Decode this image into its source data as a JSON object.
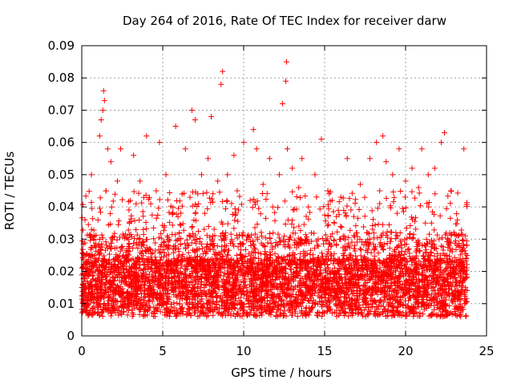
{
  "chart_data": {
    "type": "scatter",
    "title": "Day 264 of 2016, Rate Of TEC Index for receiver darw",
    "xlabel": "GPS time / hours",
    "ylabel": "ROTI / TECUs",
    "xlim": [
      0,
      25
    ],
    "ylim": [
      0,
      0.09
    ],
    "xticks": [
      0,
      5,
      10,
      15,
      20,
      25
    ],
    "xtick_labels": [
      "0",
      "5",
      "10",
      "15",
      "20",
      "25"
    ],
    "yticks": [
      0,
      0.01,
      0.02,
      0.03,
      0.04,
      0.05,
      0.06,
      0.07,
      0.08,
      0.09
    ],
    "ytick_labels": [
      "0",
      "0.01",
      "0.02",
      "0.03",
      "0.04",
      "0.05",
      "0.06",
      "0.07",
      "0.08",
      "0.09"
    ],
    "grid": true,
    "marker": "+",
    "marker_color": "#ff0000",
    "grid_color": "#a0a0a0",
    "series": [
      {
        "name": "ROTI",
        "x": [
          0.0,
          0.2,
          0.4,
          0.6,
          0.8,
          1.0,
          1.1,
          1.2,
          1.3,
          1.35,
          1.4,
          1.5,
          1.6,
          1.8,
          2.0,
          2.2,
          2.4,
          2.6,
          2.8,
          3.0,
          3.2,
          3.4,
          3.6,
          3.8,
          4.0,
          4.2,
          4.4,
          4.6,
          4.8,
          5.0,
          5.2,
          5.4,
          5.6,
          5.8,
          6.0,
          6.2,
          6.4,
          6.6,
          6.8,
          7.0,
          7.2,
          7.4,
          7.6,
          7.8,
          8.0,
          8.2,
          8.4,
          8.6,
          8.7,
          8.8,
          9.0,
          9.2,
          9.4,
          9.6,
          9.8,
          10.0,
          10.2,
          10.4,
          10.6,
          10.8,
          11.0,
          11.2,
          11.4,
          11.6,
          11.8,
          12.0,
          12.2,
          12.4,
          12.6,
          12.65,
          12.7,
          12.8,
          13.0,
          13.2,
          13.4,
          13.6,
          13.8,
          14.0,
          14.2,
          14.4,
          14.6,
          14.8,
          15.0,
          15.2,
          15.4,
          15.6,
          15.8,
          16.0,
          16.2,
          16.4,
          16.6,
          16.8,
          17.0,
          17.2,
          17.4,
          17.6,
          17.8,
          18.0,
          18.2,
          18.4,
          18.6,
          18.8,
          19.0,
          19.2,
          19.4,
          19.6,
          19.8,
          20.0,
          20.2,
          20.4,
          20.6,
          20.8,
          21.0,
          21.2,
          21.4,
          21.6,
          21.8,
          22.0,
          22.2,
          22.4,
          22.6,
          22.8,
          23.0,
          23.2,
          23.4,
          23.6,
          23.8
        ],
        "y": [
          0.015,
          0.036,
          0.012,
          0.05,
          0.025,
          0.018,
          0.062,
          0.067,
          0.07,
          0.076,
          0.073,
          0.045,
          0.058,
          0.054,
          0.02,
          0.048,
          0.058,
          0.031,
          0.012,
          0.042,
          0.056,
          0.018,
          0.048,
          0.033,
          0.062,
          0.027,
          0.012,
          0.045,
          0.06,
          0.022,
          0.05,
          0.018,
          0.038,
          0.065,
          0.015,
          0.044,
          0.058,
          0.028,
          0.07,
          0.067,
          0.013,
          0.05,
          0.038,
          0.055,
          0.068,
          0.02,
          0.048,
          0.078,
          0.082,
          0.03,
          0.05,
          0.014,
          0.056,
          0.045,
          0.025,
          0.06,
          0.015,
          0.042,
          0.064,
          0.058,
          0.022,
          0.047,
          0.013,
          0.055,
          0.04,
          0.02,
          0.05,
          0.072,
          0.079,
          0.085,
          0.058,
          0.03,
          0.052,
          0.018,
          0.046,
          0.055,
          0.025,
          0.04,
          0.013,
          0.05,
          0.03,
          0.061,
          0.018,
          0.045,
          0.02,
          0.035,
          0.012,
          0.043,
          0.025,
          0.055,
          0.015,
          0.037,
          0.021,
          0.047,
          0.012,
          0.032,
          0.055,
          0.02,
          0.06,
          0.045,
          0.062,
          0.054,
          0.025,
          0.05,
          0.032,
          0.058,
          0.015,
          0.048,
          0.027,
          0.052,
          0.012,
          0.046,
          0.058,
          0.022,
          0.05,
          0.035,
          0.052,
          0.018,
          0.06,
          0.063,
          0.03,
          0.045,
          0.012,
          0.036,
          0.02,
          0.058,
          0.025
        ]
      }
    ],
    "density_note": "thousands of points; dense band roughly 0.005 to 0.035 for x in 0 to 23.8"
  }
}
